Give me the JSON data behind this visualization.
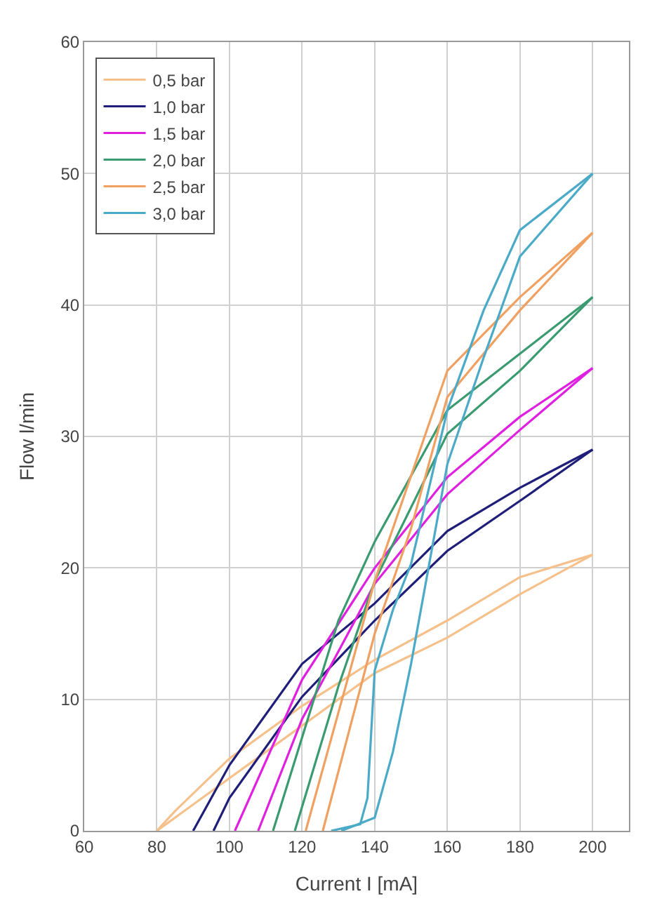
{
  "chart_data": {
    "type": "line",
    "xlabel": "Current I [mA]",
    "ylabel": "Flow l/min",
    "xlim": [
      60,
      210
    ],
    "xticks": [
      60,
      80,
      100,
      120,
      140,
      160,
      180,
      200
    ],
    "ylim": [
      0,
      60
    ],
    "yticks": [
      0,
      10,
      20,
      30,
      40,
      50,
      60
    ],
    "grid": true,
    "legend": "top left",
    "marker": "none",
    "line_style": "solid",
    "series": [
      {
        "name": "0,5 bar",
        "color": "#f5c08a",
        "x": [
          80,
          100,
          120,
          140,
          160,
          180,
          200
        ],
        "values": [
          0,
          4,
          8,
          12,
          14.7,
          18,
          21
        ]
      },
      {
        "color": "#f5c08a",
        "x": [
          80,
          85,
          100,
          120,
          140,
          160,
          180,
          200
        ],
        "values": [
          0,
          1.5,
          5.5,
          9.5,
          13,
          16,
          19.3,
          21
        ]
      },
      {
        "name": "1,0 bar",
        "color": "#1f1f7a",
        "x": [
          95.6,
          100,
          120,
          140,
          160,
          180,
          200
        ],
        "values": [
          0,
          2.5,
          10.2,
          16,
          21.3,
          25.1,
          29
        ]
      },
      {
        "color": "#1f1f7a",
        "x": [
          90,
          100,
          120,
          140,
          160,
          180,
          200
        ],
        "values": [
          0,
          5,
          12.7,
          17.3,
          22.8,
          26.1,
          29
        ]
      },
      {
        "name": "1,5 bar",
        "color": "#e020e0",
        "x": [
          107.9,
          120,
          140,
          160,
          180,
          200
        ],
        "values": [
          0,
          8.5,
          18.8,
          25.6,
          30.5,
          35.2
        ]
      },
      {
        "color": "#e020e0",
        "x": [
          101.5,
          120,
          140,
          160,
          180,
          200
        ],
        "values": [
          0,
          11.5,
          20,
          26.9,
          31.5,
          35.2
        ]
      },
      {
        "name": "2,0 bar",
        "color": "#3a9a70",
        "x": [
          118,
          130,
          140,
          160,
          180,
          200
        ],
        "values": [
          0,
          11,
          19,
          30.2,
          35,
          40.6
        ]
      },
      {
        "color": "#3a9a70",
        "x": [
          112,
          130,
          140,
          160,
          180,
          200
        ],
        "values": [
          0,
          16,
          22,
          32,
          36.3,
          40.6
        ]
      },
      {
        "name": "2,5 bar",
        "color": "#f0a060",
        "x": [
          125.7,
          140,
          150,
          160,
          180,
          200
        ],
        "values": [
          0,
          15,
          23,
          33,
          39.6,
          45.5
        ]
      },
      {
        "color": "#f0a060",
        "x": [
          121,
          130,
          140,
          160,
          180,
          200
        ],
        "values": [
          0,
          9,
          19,
          35,
          40.6,
          45.5
        ]
      },
      {
        "name": "3,0 bar",
        "color": "#4aaac8",
        "x": [
          130.8,
          140,
          145,
          150,
          160,
          170,
          180,
          200
        ],
        "values": [
          0,
          1,
          6,
          12.7,
          27.9,
          36,
          43.7,
          50
        ]
      },
      {
        "color": "#4aaac8",
        "x": [
          128,
          136,
          138,
          140,
          145,
          150,
          160,
          170,
          180,
          200
        ],
        "values": [
          0,
          0.5,
          2.5,
          12.2,
          16.8,
          20.3,
          32,
          39.6,
          45.7,
          50
        ]
      }
    ]
  }
}
